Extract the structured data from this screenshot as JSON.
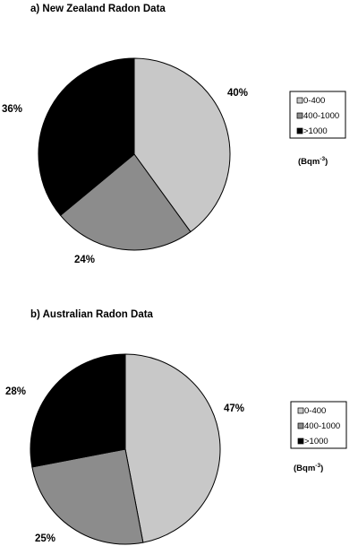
{
  "chart_data": [
    {
      "type": "pie",
      "title": "a)  New Zealand Radon Data",
      "categories": [
        "0-400",
        "400-1000",
        ">1000"
      ],
      "values": [
        40,
        24,
        36
      ],
      "value_labels": [
        "40%",
        "24%",
        "36%"
      ],
      "colors": [
        "#c8c8c8",
        "#8c8c8c",
        "#000000"
      ],
      "legend": {
        "placement": "right",
        "entries": [
          "0-400",
          "400-1000",
          ">1000"
        ],
        "unit_base": "(Bqm",
        "unit_sup": "-3",
        "unit_close": ")"
      }
    },
    {
      "type": "pie",
      "title": "b)  Australian Radon Data",
      "categories": [
        "0-400",
        "400-1000",
        ">1000"
      ],
      "values": [
        47,
        25,
        28
      ],
      "value_labels": [
        "47%",
        "25%",
        "28%"
      ],
      "colors": [
        "#c8c8c8",
        "#8c8c8c",
        "#000000"
      ],
      "legend": {
        "placement": "right",
        "entries": [
          "0-400",
          "400-1000",
          ">1000"
        ],
        "unit_base": "(Bqm",
        "unit_sup": "-3",
        "unit_close": ")"
      }
    }
  ]
}
